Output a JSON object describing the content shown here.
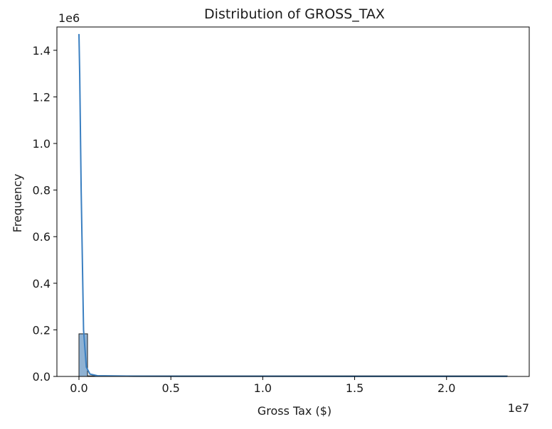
{
  "chart_data": {
    "type": "bar",
    "title": "Distribution of GROSS_TAX",
    "xlabel": "Gross Tax ($)",
    "ylabel": "Frequency",
    "x_offset_label": "1e7",
    "y_offset_label": "1e6",
    "xlim": [
      -0.12,
      2.45
    ],
    "ylim": [
      0,
      1.5
    ],
    "x_ticks": [
      {
        "value": 0.0,
        "label": "0.0"
      },
      {
        "value": 0.5,
        "label": "0.5"
      },
      {
        "value": 1.0,
        "label": "1.0"
      },
      {
        "value": 1.5,
        "label": "1.5"
      },
      {
        "value": 2.0,
        "label": "2.0"
      }
    ],
    "y_ticks": [
      {
        "value": 0.0,
        "label": "0.0"
      },
      {
        "value": 0.2,
        "label": "0.2"
      },
      {
        "value": 0.4,
        "label": "0.4"
      },
      {
        "value": 0.6,
        "label": "0.6"
      },
      {
        "value": 0.8,
        "label": "0.8"
      },
      {
        "value": 1.0,
        "label": "1.0"
      },
      {
        "value": 1.2,
        "label": "1.2"
      },
      {
        "value": 1.4,
        "label": "1.4"
      }
    ],
    "bins": [
      {
        "x0": 0.0,
        "x1": 0.0466,
        "count": 0.183
      },
      {
        "x0": 0.0466,
        "x1": 2.33,
        "count": 0.0
      }
    ],
    "kde": {
      "x": [
        0.0,
        0.004,
        0.012,
        0.025,
        0.04,
        0.06,
        0.1,
        0.3,
        0.6,
        1.0,
        1.5,
        2.0,
        2.33
      ],
      "y": [
        1.47,
        1.3,
        0.8,
        0.2,
        0.04,
        0.01,
        0.003,
        0.001,
        0.0008,
        0.0006,
        0.0005,
        0.0004,
        0.0003
      ]
    },
    "grid": false,
    "colors": {
      "bar_fill": "#8fb2d3",
      "bar_edge": "#222222",
      "kde_line": "#3a7fc1",
      "axes": "#000000",
      "text": "#1a1a1a"
    }
  }
}
